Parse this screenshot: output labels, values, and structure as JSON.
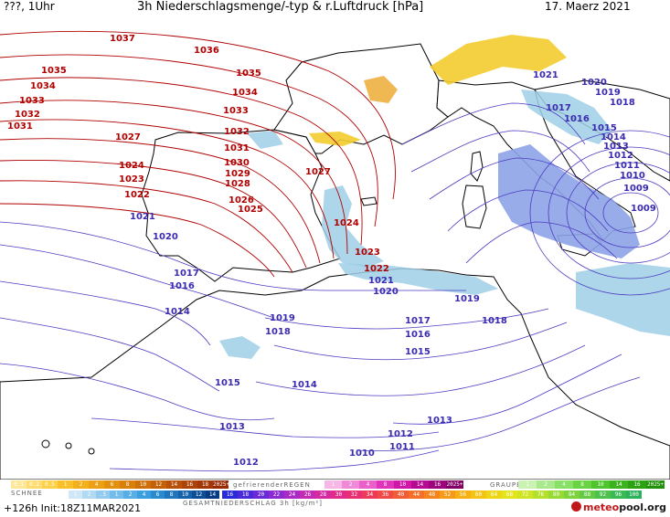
{
  "header": {
    "left": "???, 1Uhr",
    "title": "3h Niederschlagsmenge/-typ & r.Luftdruck [hPa]",
    "date": "17. Maerz 2021"
  },
  "colors": {
    "high_isobar": "#b00000",
    "low_isobar": "#3a2bb0",
    "rain": "#9fcfe6",
    "rain_heavy": "#8ea3e8",
    "snow_yellow": "#f3cc2e",
    "snow_orange": "#eeb040",
    "land": "#ffffff",
    "coast": "#000000"
  },
  "isobar_labels": [
    {
      "text": "1037",
      "cls": "hi"
    },
    {
      "text": "1036",
      "cls": "hi"
    },
    {
      "text": "1035",
      "cls": "hi"
    },
    {
      "text": "1035",
      "cls": "hi"
    },
    {
      "text": "1034",
      "cls": "hi"
    },
    {
      "text": "1034",
      "cls": "hi"
    },
    {
      "text": "1033",
      "cls": "hi"
    },
    {
      "text": "1033",
      "cls": "hi"
    },
    {
      "text": "1032",
      "cls": "hi"
    },
    {
      "text": "1032",
      "cls": "hi"
    },
    {
      "text": "1031",
      "cls": "hi"
    },
    {
      "text": "1031",
      "cls": "hi"
    },
    {
      "text": "1030",
      "cls": "hi"
    },
    {
      "text": "1029",
      "cls": "hi"
    },
    {
      "text": "1028",
      "cls": "hi"
    },
    {
      "text": "1027",
      "cls": "hi"
    },
    {
      "text": "1027",
      "cls": "hi"
    },
    {
      "text": "1026",
      "cls": "hi"
    },
    {
      "text": "1025",
      "cls": "hi"
    },
    {
      "text": "1024",
      "cls": "hi"
    },
    {
      "text": "1024",
      "cls": "hi"
    },
    {
      "text": "1023",
      "cls": "hi"
    },
    {
      "text": "1023",
      "cls": "hi"
    },
    {
      "text": "1022",
      "cls": "hi"
    },
    {
      "text": "1022",
      "cls": "hi"
    },
    {
      "text": "1021",
      "cls": "lo"
    },
    {
      "text": "1021",
      "cls": "lo"
    },
    {
      "text": "1020",
      "cls": "lo"
    },
    {
      "text": "1020",
      "cls": "lo"
    },
    {
      "text": "1017",
      "cls": "lo"
    },
    {
      "text": "1016",
      "cls": "lo"
    },
    {
      "text": "1014",
      "cls": "lo"
    },
    {
      "text": "1019",
      "cls": "lo"
    },
    {
      "text": "1018",
      "cls": "lo"
    },
    {
      "text": "1015",
      "cls": "lo"
    },
    {
      "text": "1014",
      "cls": "lo"
    },
    {
      "text": "1013",
      "cls": "lo"
    },
    {
      "text": "1012",
      "cls": "lo"
    },
    {
      "text": "1017",
      "cls": "lo"
    },
    {
      "text": "1016",
      "cls": "lo"
    },
    {
      "text": "1015",
      "cls": "lo"
    },
    {
      "text": "1013",
      "cls": "lo"
    },
    {
      "text": "1012",
      "cls": "lo"
    },
    {
      "text": "1011",
      "cls": "lo"
    },
    {
      "text": "1010",
      "cls": "lo"
    },
    {
      "text": "1019",
      "cls": "lo"
    },
    {
      "text": "1018",
      "cls": "lo"
    },
    {
      "text": "1021",
      "cls": "lo"
    },
    {
      "text": "1020",
      "cls": "lo"
    },
    {
      "text": "1019",
      "cls": "lo"
    },
    {
      "text": "1018",
      "cls": "lo"
    },
    {
      "text": "1017",
      "cls": "lo"
    },
    {
      "text": "1016",
      "cls": "lo"
    },
    {
      "text": "1015",
      "cls": "lo"
    },
    {
      "text": "1014",
      "cls": "lo"
    },
    {
      "text": "1013",
      "cls": "lo"
    },
    {
      "text": "1012",
      "cls": "lo"
    },
    {
      "text": "1011",
      "cls": "lo"
    },
    {
      "text": "1010",
      "cls": "lo"
    },
    {
      "text": "1009",
      "cls": "lo"
    },
    {
      "text": "1009",
      "cls": "lo"
    }
  ],
  "legend": {
    "snow_label": "SCHNEE",
    "freezing_rain_label": "gefrierenderREGEN",
    "graupel_label": "GRAUPEL",
    "total_label": "GESAMTNIEDERSCHLAG 3h [kg/m²]",
    "rain_values": [
      "0.1",
      "0.2",
      "0.5",
      "1",
      "2",
      "4",
      "6",
      "8",
      "10",
      "12",
      "14",
      "16",
      "18",
      "2025+"
    ],
    "freezing_values": [
      "1",
      "2",
      "4",
      "8",
      "10",
      "14",
      "16",
      "2025+"
    ],
    "graupel_values": [
      "1",
      "2",
      "4",
      "8",
      "10",
      "14",
      "16",
      "2025+"
    ],
    "snow_values": [
      "1",
      "2",
      ".5",
      "1",
      "2",
      "4",
      "6",
      "8",
      "10",
      "12",
      "14"
    ],
    "total_values": [
      "16",
      "18",
      "20",
      "22",
      "24",
      "26",
      "28",
      "30",
      "32",
      "34",
      "36",
      "40",
      "44",
      "48",
      "52",
      "56",
      "60",
      "64",
      "68",
      "72",
      "76",
      "80",
      "84",
      "88",
      "92",
      "96",
      "100"
    ]
  },
  "footer": {
    "run": "+126h Init:18Z11MAR2021",
    "logo_a": "meteo",
    "logo_b": "pool.org"
  }
}
